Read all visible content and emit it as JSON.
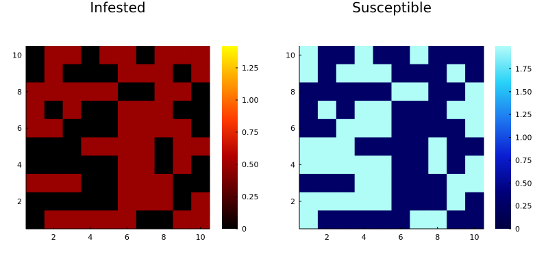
{
  "chart_data": [
    {
      "type": "heatmap",
      "title": "Infested",
      "xlabel": "",
      "ylabel": "",
      "xlim": [
        0.5,
        10.5
      ],
      "ylim": [
        0.5,
        10.5
      ],
      "xticks": [
        "2",
        "4",
        "6",
        "8",
        "10"
      ],
      "yticks": [
        "2",
        "4",
        "6",
        "8",
        "10"
      ],
      "colormap": "heat",
      "colors": {
        "zero": "#000000",
        "one": "#990000"
      },
      "colorbar": {
        "min": 0,
        "max": 1.42,
        "ticks": [
          "0",
          "0.25",
          "0.50",
          "0.75",
          "1.00",
          "1.25"
        ],
        "gradient": [
          "#000000",
          "#5a0000",
          "#b40000",
          "#ff3c00",
          "#ff9b00",
          "#ffff00"
        ]
      },
      "values_rows_top_to_bottom": [
        [
          0,
          1,
          1,
          0,
          1,
          1,
          0,
          1,
          1,
          1
        ],
        [
          0,
          1,
          0,
          0,
          0,
          1,
          1,
          1,
          0,
          1
        ],
        [
          1,
          1,
          1,
          1,
          1,
          0,
          0,
          1,
          1,
          0
        ],
        [
          1,
          0,
          1,
          0,
          0,
          1,
          1,
          1,
          0,
          0
        ],
        [
          1,
          1,
          0,
          0,
          0,
          1,
          1,
          1,
          1,
          0
        ],
        [
          0,
          0,
          0,
          1,
          1,
          1,
          1,
          0,
          1,
          1
        ],
        [
          0,
          0,
          0,
          0,
          0,
          1,
          1,
          0,
          1,
          0
        ],
        [
          1,
          1,
          1,
          0,
          0,
          1,
          1,
          1,
          0,
          0
        ],
        [
          0,
          0,
          0,
          0,
          0,
          1,
          1,
          1,
          0,
          1
        ],
        [
          0,
          1,
          1,
          1,
          1,
          1,
          0,
          0,
          1,
          1
        ]
      ]
    },
    {
      "type": "heatmap",
      "title": "Susceptible",
      "xlabel": "",
      "ylabel": "",
      "xlim": [
        0.5,
        10.5
      ],
      "ylim": [
        0.5,
        10.5
      ],
      "xticks": [
        "2",
        "4",
        "6",
        "8",
        "10"
      ],
      "yticks": [
        "2",
        "4",
        "6",
        "8",
        "10"
      ],
      "colormap": "ice",
      "colors": {
        "zero": "#000066",
        "one": "#b0fcf6"
      },
      "colorbar": {
        "min": 0,
        "max": 2.0,
        "ticks": [
          "0",
          "0.25",
          "0.50",
          "0.75",
          "1.00",
          "1.25",
          "1.50",
          "1.75"
        ],
        "gradient": [
          "#000040",
          "#00007a",
          "#0a1ed2",
          "#1e78f0",
          "#28d2f8",
          "#b4fcf8"
        ]
      },
      "values_rows_top_to_bottom": [
        [
          1,
          0,
          0,
          1,
          0,
          0,
          1,
          0,
          0,
          0
        ],
        [
          1,
          0,
          1,
          1,
          1,
          0,
          0,
          0,
          1,
          0
        ],
        [
          0,
          0,
          0,
          0,
          0,
          1,
          1,
          0,
          0,
          1
        ],
        [
          0,
          1,
          0,
          1,
          1,
          0,
          0,
          0,
          1,
          1
        ],
        [
          0,
          0,
          1,
          1,
          1,
          0,
          0,
          0,
          0,
          1
        ],
        [
          1,
          1,
          1,
          0,
          0,
          0,
          0,
          1,
          0,
          0
        ],
        [
          1,
          1,
          1,
          1,
          1,
          0,
          0,
          1,
          0,
          1
        ],
        [
          0,
          0,
          0,
          1,
          1,
          0,
          0,
          0,
          1,
          1
        ],
        [
          1,
          1,
          1,
          1,
          1,
          0,
          0,
          0,
          1,
          0
        ],
        [
          1,
          0,
          0,
          0,
          0,
          0,
          1,
          1,
          0,
          0
        ]
      ]
    }
  ]
}
